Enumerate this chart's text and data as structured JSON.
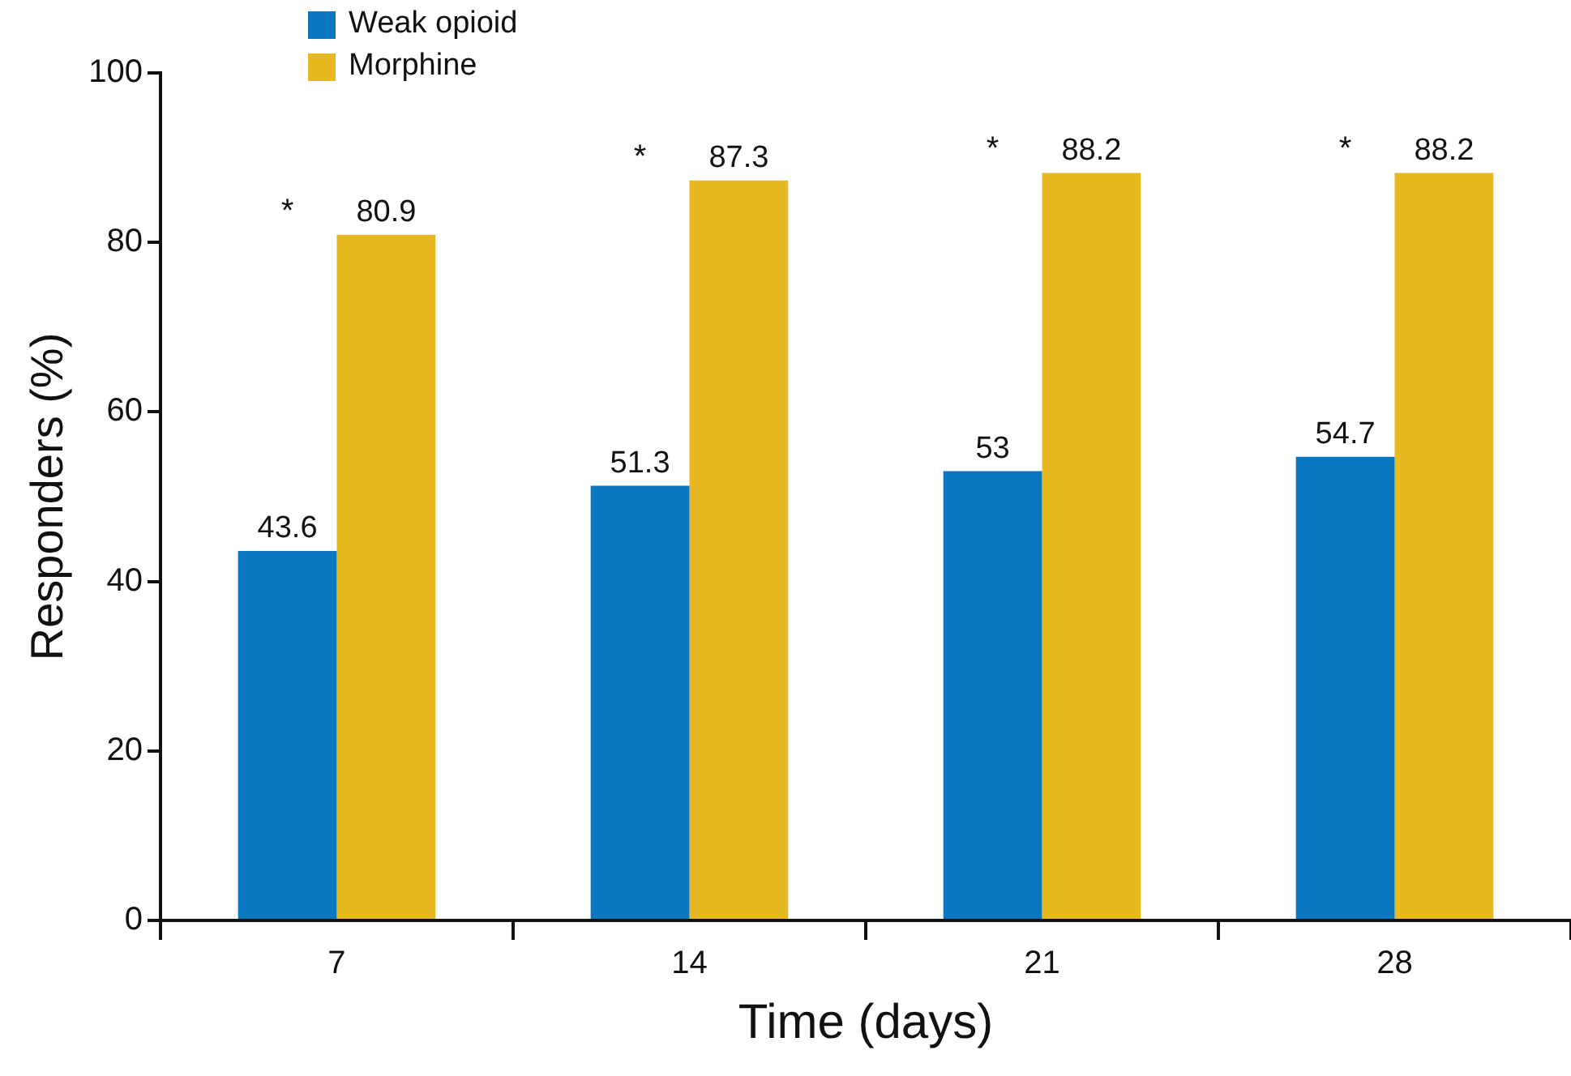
{
  "chart_data": {
    "type": "bar",
    "xlabel": "Time (days)",
    "ylabel": "Responders (%)",
    "categories": [
      "7",
      "14",
      "21",
      "28"
    ],
    "series": [
      {
        "name": "Weak opioid",
        "color": "#0a77bf",
        "values": [
          43.6,
          51.3,
          53,
          54.7
        ]
      },
      {
        "name": "Morphine",
        "color": "#e8b820",
        "values": [
          80.9,
          87.3,
          88.2,
          88.2
        ]
      }
    ],
    "ylim": [
      0,
      100
    ],
    "yticks": [
      0,
      20,
      40,
      60,
      80,
      100
    ],
    "grid": false,
    "legend": "top left",
    "data_labels": true,
    "annotations": [
      "*",
      "*",
      "*",
      "*"
    ]
  }
}
